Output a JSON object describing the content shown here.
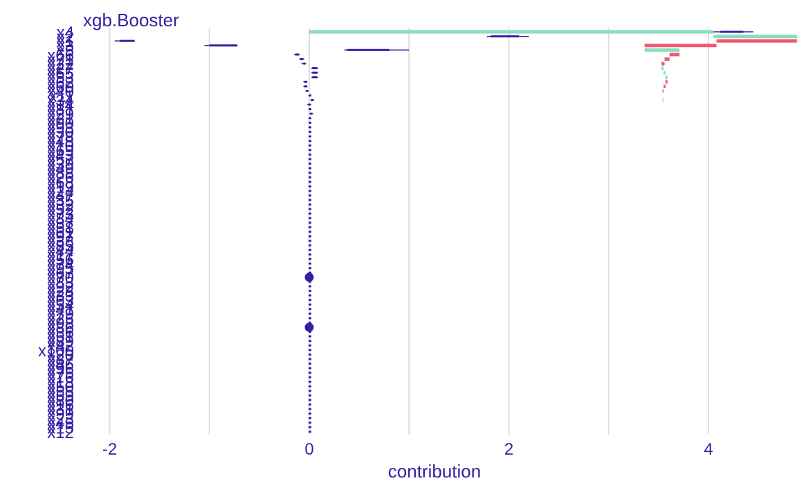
{
  "chart_data": {
    "type": "bar",
    "subtype": "break-down-with-uncertainty",
    "title": "xgb.Booster",
    "xlabel": "contribution",
    "ylabel": "",
    "xlim": [
      -2.2,
      4.5
    ],
    "x_ticks": [
      -2,
      0,
      2,
      4
    ],
    "x_tick_labels": [
      "-2",
      "0",
      "2",
      "4"
    ],
    "grid": true,
    "legend": "none",
    "colors": {
      "positive": "#8bdcbe",
      "negative": "#f05a71",
      "boxplot": "#371ea3",
      "grid": "#dddddd",
      "text": "#371ea3"
    },
    "features": [
      {
        "name": "x4",
        "value": 4.05,
        "min": 4.05,
        "q1": 4.12,
        "q3": 4.35,
        "max": 4.45
      },
      {
        "name": "x2",
        "value": 1.78,
        "min": 1.78,
        "q1": 1.82,
        "q3": 2.1,
        "max": 2.2
      },
      {
        "name": "x1",
        "value": -1.75,
        "min": -1.95,
        "q1": -1.9,
        "q3": -1.75,
        "max": -1.75
      },
      {
        "name": "x3",
        "value": -0.72,
        "min": -1.05,
        "q1": -1.0,
        "q3": -0.72,
        "max": -0.72
      },
      {
        "name": "x5",
        "value": 0.35,
        "min": 0.35,
        "q1": 0.38,
        "q3": 0.8,
        "max": 1.0
      },
      {
        "name": "x66",
        "value": -0.1,
        "min": -0.15,
        "q1": -0.14,
        "q3": -0.1,
        "max": -0.1
      },
      {
        "name": "x71",
        "value": -0.05,
        "min": -0.1,
        "q1": -0.09,
        "q3": -0.06,
        "max": -0.05
      },
      {
        "name": "x22",
        "value": -0.03,
        "min": -0.08,
        "q1": -0.06,
        "q3": -0.04,
        "max": -0.03
      },
      {
        "name": "x27",
        "value": 0.02,
        "min": 0.02,
        "q1": 0.03,
        "q3": 0.08,
        "max": 0.09
      },
      {
        "name": "x65",
        "value": 0.02,
        "min": 0.02,
        "q1": 0.03,
        "q3": 0.08,
        "max": 0.09
      },
      {
        "name": "x53",
        "value": 0.02,
        "min": 0.02,
        "q1": 0.03,
        "q3": 0.08,
        "max": 0.09
      },
      {
        "name": "x62",
        "value": -0.02,
        "min": -0.06,
        "q1": -0.05,
        "q3": -0.02,
        "max": -0.02
      },
      {
        "name": "x60",
        "value": -0.02,
        "min": -0.06,
        "q1": -0.05,
        "q3": -0.02,
        "max": -0.02
      },
      {
        "name": "x40",
        "value": -0.01,
        "min": -0.04,
        "q1": -0.03,
        "q3": -0.01,
        "max": -0.01
      },
      {
        "name": "x11",
        "value": 0.0,
        "min": -0.01,
        "q1": 0.0,
        "q3": 0.0,
        "max": 0.01
      },
      {
        "name": "x34",
        "value": 0.01,
        "min": 0.01,
        "q1": 0.02,
        "q3": 0.04,
        "max": 0.05
      },
      {
        "name": "x14",
        "value": 0.0,
        "min": -0.02,
        "q1": -0.01,
        "q3": 0.01,
        "max": 0.02
      },
      {
        "name": "x81",
        "value": 0.0,
        "min": -0.01,
        "q1": 0.0,
        "q3": 0.01,
        "max": 0.02
      },
      {
        "name": "x29",
        "value": 0.0,
        "min": 0.0,
        "q1": 0.01,
        "q3": 0.03,
        "max": 0.04
      },
      {
        "name": "x21",
        "value": 0.0,
        "min": -0.01,
        "q1": 0.0,
        "q3": 0.0,
        "max": 0.01
      },
      {
        "name": "x90",
        "value": 0.0,
        "min": -0.01,
        "q1": 0.0,
        "q3": 0.01,
        "max": 0.02
      },
      {
        "name": "x93",
        "value": 0.0,
        "min": -0.01,
        "q1": 0.0,
        "q3": 0.0,
        "max": 0.01
      },
      {
        "name": "x30",
        "value": 0.0,
        "min": -0.01,
        "q1": 0.0,
        "q3": 0.0,
        "max": 0.01
      },
      {
        "name": "x78",
        "value": 0.0,
        "min": -0.01,
        "q1": 0.0,
        "q3": 0.0,
        "max": 0.01
      },
      {
        "name": "x48",
        "value": 0.0,
        "min": -0.01,
        "q1": 0.0,
        "q3": 0.0,
        "max": 0.01
      },
      {
        "name": "x10",
        "value": 0.0,
        "min": -0.01,
        "q1": 0.0,
        "q3": 0.0,
        "max": 0.01
      },
      {
        "name": "x69",
        "value": 0.0,
        "min": -0.01,
        "q1": 0.0,
        "q3": 0.0,
        "max": 0.01
      },
      {
        "name": "x43",
        "value": 0.0,
        "min": -0.01,
        "q1": 0.0,
        "q3": 0.0,
        "max": 0.01
      },
      {
        "name": "x57",
        "value": 0.0,
        "min": -0.01,
        "q1": 0.0,
        "q3": 0.0,
        "max": 0.01
      },
      {
        "name": "x39",
        "value": 0.0,
        "min": -0.01,
        "q1": 0.0,
        "q3": 0.0,
        "max": 0.01
      },
      {
        "name": "x49",
        "value": 0.0,
        "min": -0.01,
        "q1": 0.0,
        "q3": 0.0,
        "max": 0.01
      },
      {
        "name": "x88",
        "value": 0.0,
        "min": -0.01,
        "q1": 0.0,
        "q3": 0.0,
        "max": 0.01
      },
      {
        "name": "x26",
        "value": 0.0,
        "min": -0.01,
        "q1": 0.0,
        "q3": 0.0,
        "max": 0.01
      },
      {
        "name": "x68",
        "value": 0.0,
        "min": -0.01,
        "q1": 0.0,
        "q3": 0.0,
        "max": 0.01
      },
      {
        "name": "x19",
        "value": 0.0,
        "min": -0.01,
        "q1": 0.0,
        "q3": 0.0,
        "max": 0.01
      },
      {
        "name": "x24",
        "value": 0.0,
        "min": -0.01,
        "q1": 0.0,
        "q3": 0.0,
        "max": 0.01
      },
      {
        "name": "x47",
        "value": 0.0,
        "min": -0.01,
        "q1": 0.0,
        "q3": 0.0,
        "max": 0.01
      },
      {
        "name": "x35",
        "value": 0.0,
        "min": -0.01,
        "q1": 0.0,
        "q3": 0.0,
        "max": 0.01
      },
      {
        "name": "x32",
        "value": 0.0,
        "min": -0.01,
        "q1": 0.0,
        "q3": 0.0,
        "max": 0.01
      },
      {
        "name": "x52",
        "value": 0.0,
        "min": -0.01,
        "q1": 0.0,
        "q3": 0.0,
        "max": 0.01
      },
      {
        "name": "x73",
        "value": 0.0,
        "min": -0.01,
        "q1": 0.0,
        "q3": 0.0,
        "max": 0.01
      },
      {
        "name": "x84",
        "value": 0.0,
        "min": -0.01,
        "q1": 0.0,
        "q3": 0.0,
        "max": 0.01
      },
      {
        "name": "x37",
        "value": 0.0,
        "min": -0.01,
        "q1": 0.0,
        "q3": 0.0,
        "max": 0.01
      },
      {
        "name": "x58",
        "value": 0.0,
        "min": -0.01,
        "q1": 0.0,
        "q3": 0.0,
        "max": 0.01
      },
      {
        "name": "x61",
        "value": 0.0,
        "min": -0.01,
        "q1": 0.0,
        "q3": 0.0,
        "max": 0.01
      },
      {
        "name": "x97",
        "value": 0.0,
        "min": -0.01,
        "q1": 0.0,
        "q3": 0.0,
        "max": 0.01
      },
      {
        "name": "x38",
        "value": 0.0,
        "min": -0.01,
        "q1": 0.0,
        "q3": 0.0,
        "max": 0.01
      },
      {
        "name": "x85",
        "value": 0.0,
        "min": -0.01,
        "q1": 0.0,
        "q3": 0.0,
        "max": 0.01
      },
      {
        "name": "x44",
        "value": 0.0,
        "min": -0.01,
        "q1": 0.0,
        "q3": 0.0,
        "max": 0.01
      },
      {
        "name": "x17",
        "value": 0.0,
        "min": -0.01,
        "q1": 0.0,
        "q3": 0.0,
        "max": 0.01
      },
      {
        "name": "x56",
        "value": 0.0,
        "min": -0.01,
        "q1": 0.0,
        "q3": 0.0,
        "max": 0.01
      },
      {
        "name": "x74",
        "value": 0.0,
        "min": -0.01,
        "q1": 0.0,
        "q3": 0.0,
        "max": 0.01
      },
      {
        "name": "x95",
        "value": 0.0,
        "min": -0.01,
        "q1": 0.0,
        "q3": 0.0,
        "max": 0.01
      },
      {
        "name": "x67",
        "value": 0.0,
        "min": -0.01,
        "q1": 0.0,
        "q3": 0.0,
        "max": 0.01
      },
      {
        "name": "x70",
        "value": 0.0,
        "min": 0.0,
        "q1": 0.0,
        "q3": 0.0,
        "max": 0.0,
        "point": true
      },
      {
        "name": "x83",
        "value": 0.0,
        "min": -0.01,
        "q1": 0.0,
        "q3": 0.0,
        "max": 0.01
      },
      {
        "name": "x92",
        "value": 0.0,
        "min": -0.01,
        "q1": 0.0,
        "q3": 0.0,
        "max": 0.01
      },
      {
        "name": "x28",
        "value": 0.0,
        "min": -0.01,
        "q1": 0.0,
        "q3": 0.0,
        "max": 0.01
      },
      {
        "name": "x33",
        "value": 0.0,
        "min": -0.01,
        "q1": 0.0,
        "q3": 0.0,
        "max": 0.01
      },
      {
        "name": "x63",
        "value": 0.0,
        "min": -0.01,
        "q1": 0.0,
        "q3": 0.0,
        "max": 0.01
      },
      {
        "name": "x54",
        "value": 0.0,
        "min": -0.01,
        "q1": 0.0,
        "q3": 0.0,
        "max": 0.01
      },
      {
        "name": "x41",
        "value": 0.0,
        "min": -0.01,
        "q1": 0.0,
        "q3": 0.0,
        "max": 0.01
      },
      {
        "name": "x79",
        "value": 0.0,
        "min": -0.01,
        "q1": 0.0,
        "q3": 0.0,
        "max": 0.01
      },
      {
        "name": "x25",
        "value": 0.0,
        "min": -0.01,
        "q1": 0.0,
        "q3": 0.0,
        "max": 0.01
      },
      {
        "name": "x98",
        "value": 0.0,
        "min": -0.01,
        "q1": 0.0,
        "q3": 0.0,
        "max": 0.01
      },
      {
        "name": "x86",
        "value": 0.0,
        "min": 0.0,
        "q1": 0.0,
        "q3": 0.0,
        "max": 0.0,
        "point": true
      },
      {
        "name": "x36",
        "value": 0.0,
        "min": -0.01,
        "q1": 0.0,
        "q3": 0.0,
        "max": 0.01
      },
      {
        "name": "x51",
        "value": 0.0,
        "min": -0.01,
        "q1": 0.0,
        "q3": 0.0,
        "max": 0.01
      },
      {
        "name": "x89",
        "value": 0.0,
        "min": -0.01,
        "q1": 0.0,
        "q3": 0.0,
        "max": 0.01
      },
      {
        "name": "x42",
        "value": 0.0,
        "min": -0.01,
        "q1": 0.0,
        "q3": 0.0,
        "max": 0.01
      },
      {
        "name": "x100",
        "value": 0.0,
        "min": -0.01,
        "q1": 0.0,
        "q3": 0.0,
        "max": 0.01
      },
      {
        "name": "x20",
        "value": 0.0,
        "min": -0.01,
        "q1": 0.0,
        "q3": 0.0,
        "max": 0.01
      },
      {
        "name": "x87",
        "value": 0.0,
        "min": -0.01,
        "q1": 0.0,
        "q3": 0.0,
        "max": 0.01
      },
      {
        "name": "x46",
        "value": 0.0,
        "min": -0.01,
        "q1": 0.0,
        "q3": 0.0,
        "max": 0.01
      },
      {
        "name": "x96",
        "value": 0.0,
        "min": -0.01,
        "q1": 0.0,
        "q3": 0.0,
        "max": 0.01
      },
      {
        "name": "x75",
        "value": 0.0,
        "min": -0.01,
        "q1": 0.0,
        "q3": 0.0,
        "max": 0.01
      },
      {
        "name": "x76",
        "value": 0.0,
        "min": -0.01,
        "q1": 0.0,
        "q3": 0.0,
        "max": 0.01
      },
      {
        "name": "x18",
        "value": 0.0,
        "min": -0.01,
        "q1": 0.0,
        "q3": 0.0,
        "max": 0.01
      },
      {
        "name": "x50",
        "value": 0.0,
        "min": -0.01,
        "q1": 0.0,
        "q3": 0.0,
        "max": 0.01
      },
      {
        "name": "x55",
        "value": 0.0,
        "min": -0.01,
        "q1": 0.0,
        "q3": 0.0,
        "max": 0.01
      },
      {
        "name": "x59",
        "value": 0.0,
        "min": -0.01,
        "q1": 0.0,
        "q3": 0.0,
        "max": 0.01
      },
      {
        "name": "x80",
        "value": 0.0,
        "min": -0.01,
        "q1": 0.0,
        "q3": 0.0,
        "max": 0.01
      },
      {
        "name": "x16",
        "value": 0.0,
        "min": -0.01,
        "q1": 0.0,
        "q3": 0.0,
        "max": 0.01
      },
      {
        "name": "x31",
        "value": 0.0,
        "min": -0.01,
        "q1": 0.0,
        "q3": 0.0,
        "max": 0.01
      },
      {
        "name": "x99",
        "value": 0.0,
        "min": -0.01,
        "q1": 0.0,
        "q3": 0.0,
        "max": 0.01
      },
      {
        "name": "x23",
        "value": 0.0,
        "min": -0.01,
        "q1": 0.0,
        "q3": 0.0,
        "max": 0.01
      },
      {
        "name": "x45",
        "value": 0.0,
        "min": -0.01,
        "q1": 0.0,
        "q3": 0.0,
        "max": 0.01
      },
      {
        "name": "x15",
        "value": 0.0,
        "min": -0.01,
        "q1": 0.0,
        "q3": 0.0,
        "max": 0.01
      },
      {
        "name": "x12",
        "value": 0.0,
        "min": -0.01,
        "q1": 0.0,
        "q3": 0.0,
        "max": 0.01
      }
    ]
  }
}
